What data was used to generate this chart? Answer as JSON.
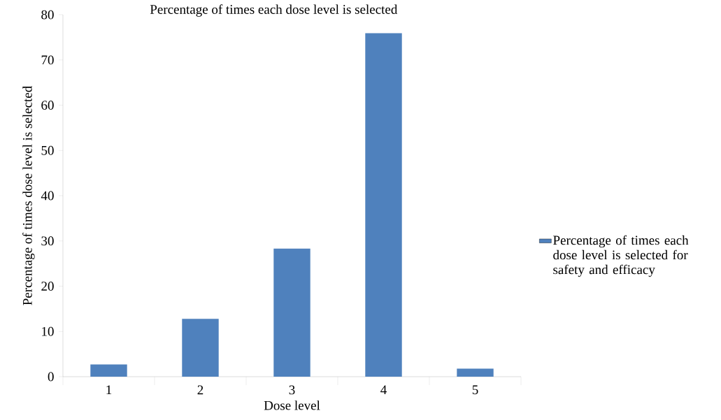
{
  "chart_data": {
    "type": "bar",
    "title": "Percentage of times each dose level is selected",
    "xlabel": "Dose level",
    "ylabel": "Percentage of times dose level is selected",
    "categories": [
      "1",
      "2",
      "3",
      "4",
      "5"
    ],
    "series": [
      {
        "name": "Percentage of times each dose level is selected for safety and efficacy",
        "color": "#4f81bd",
        "values": [
          2.7,
          12.8,
          28.3,
          75.9,
          1.8
        ]
      }
    ],
    "ylim": [
      0,
      80
    ],
    "yticks": [
      0,
      10,
      20,
      30,
      40,
      50,
      60,
      70,
      80
    ],
    "grid": false,
    "legend": "right"
  }
}
